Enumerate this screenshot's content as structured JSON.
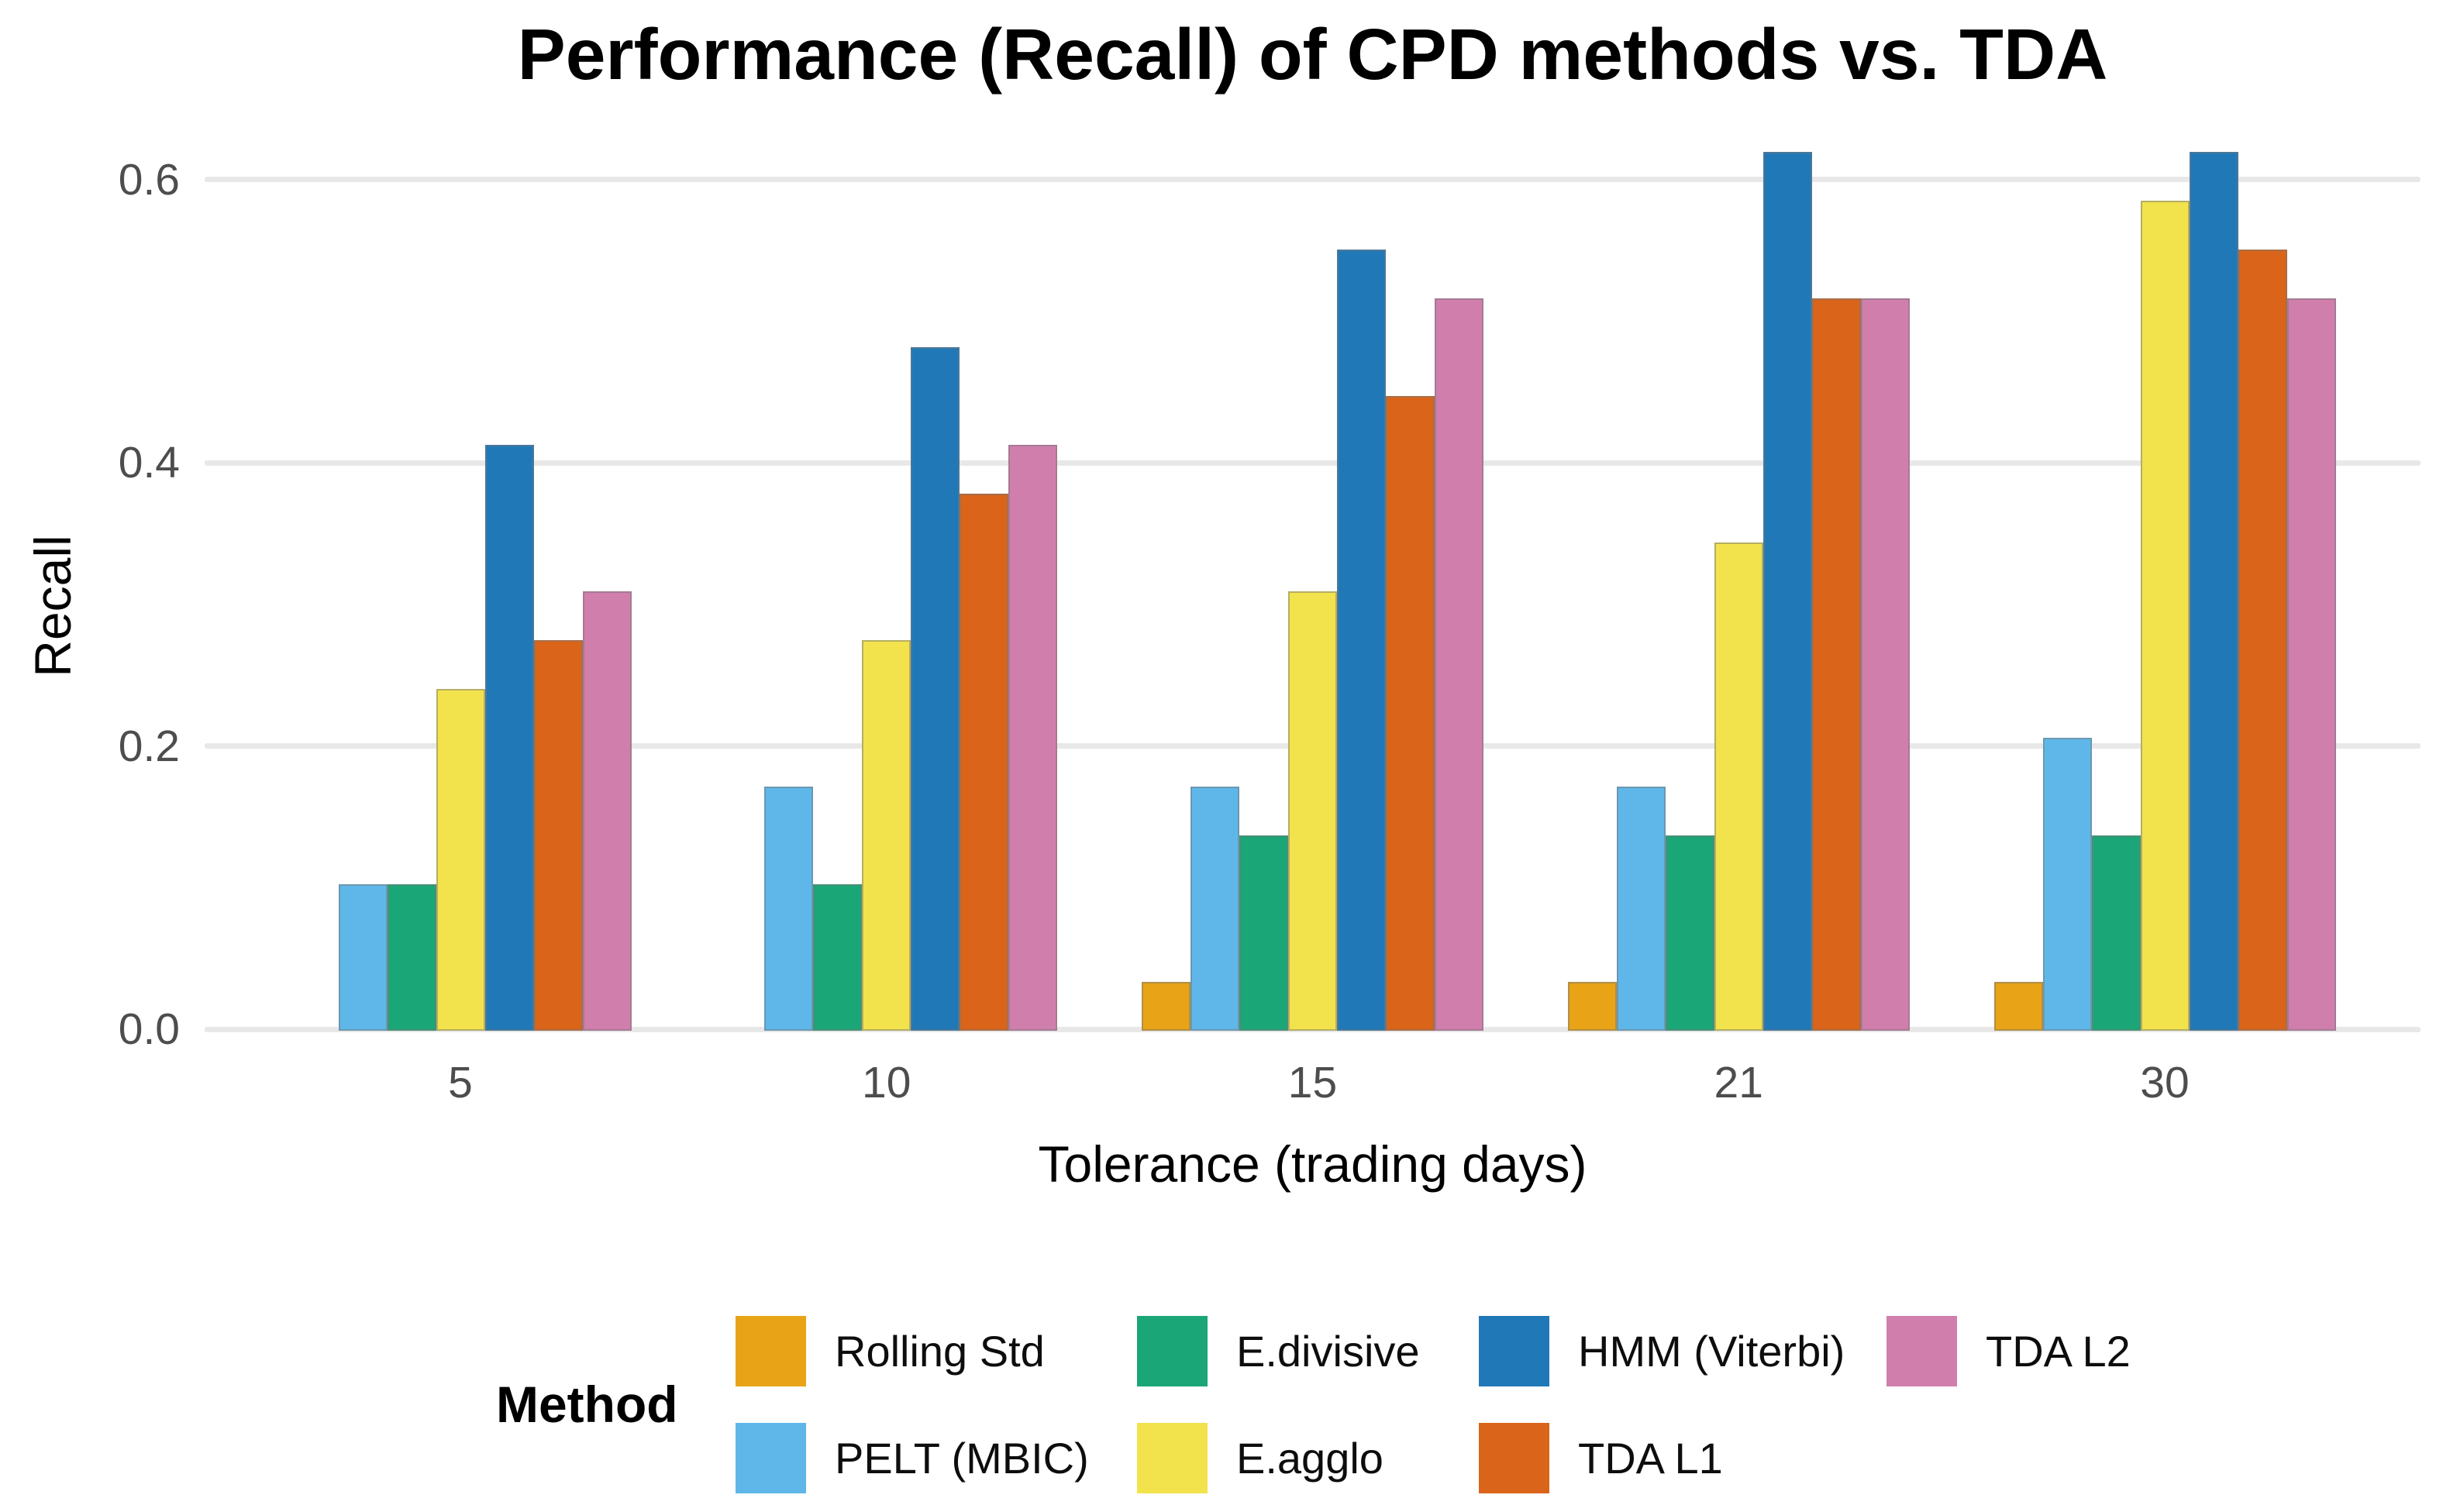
{
  "chart_data": {
    "type": "bar",
    "title": "Performance (Recall) of CPD methods vs. TDA",
    "xlabel": "Tolerance (trading days)",
    "ylabel": "Recall",
    "categories": [
      "5",
      "10",
      "15",
      "21",
      "30"
    ],
    "y_ticks": [
      "0.0",
      "0.2",
      "0.4",
      "0.6"
    ],
    "y_tick_values": [
      0,
      0.2,
      0.4,
      0.6
    ],
    "ylim": [
      0,
      0.652
    ],
    "grid": "horizontal-major-only",
    "legend_title": "Method",
    "legend_position": "bottom",
    "background": "#ffffff",
    "gridline_color": "#E8E8E8",
    "tick_label_color": "#4D4D4D",
    "series": [
      {
        "name": "Rolling Std",
        "color": "#E8A416",
        "values": [
          0,
          0,
          0.0345,
          0.0345,
          0.0345
        ]
      },
      {
        "name": "PELT (MBIC)",
        "color": "#5FB7E9",
        "values": [
          0.1034,
          0.1724,
          0.1724,
          0.1724,
          0.2069
        ]
      },
      {
        "name": "E.divisive",
        "color": "#1AA676",
        "values": [
          0.1034,
          0.1034,
          0.1379,
          0.1379,
          0.1379
        ]
      },
      {
        "name": "E.agglo",
        "color": "#F2E34D",
        "values": [
          0.2414,
          0.2759,
          0.3103,
          0.3448,
          0.5862
        ]
      },
      {
        "name": "HMM (Viterbi)",
        "color": "#2178B7",
        "values": [
          0.4138,
          0.4828,
          0.5517,
          0.6207,
          0.6207
        ]
      },
      {
        "name": "TDA L1",
        "color": "#D9641A",
        "values": [
          0.2759,
          0.3793,
          0.4483,
          0.5172,
          0.5517
        ]
      },
      {
        "name": "TDA L2",
        "color": "#D07FAD",
        "values": [
          0.3103,
          0.4138,
          0.5172,
          0.5172,
          0.5172
        ]
      }
    ]
  }
}
